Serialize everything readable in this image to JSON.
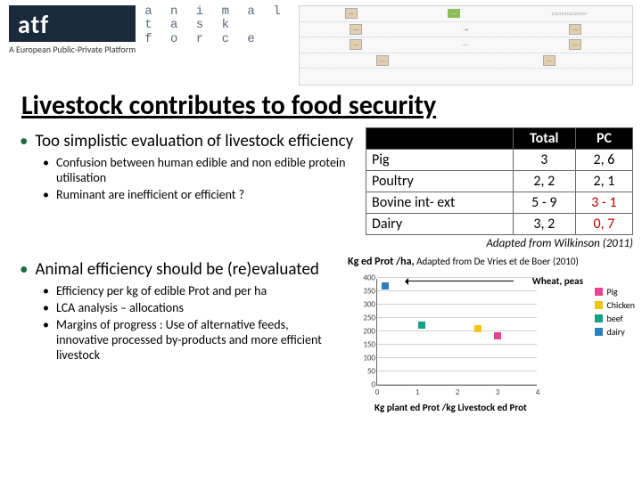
{
  "header": {
    "logo": "atf",
    "logo_sub": "A European Public-Private Platform",
    "taskforce_lines": [
      "a n i m a l",
      "t a s k",
      "f o r c e"
    ]
  },
  "title": "Livestock contributes to food security",
  "bullets": {
    "b1": "Too simplistic evaluation of livestock efficiency",
    "b1_subs": [
      "Confusion between human edible and non edible protein utilisation",
      "Ruminant are inefficient or efficient ?"
    ],
    "b2": "Animal efficiency should be (re)evaluated",
    "b2_subs": [
      "Efficiency per kg of edible Prot  and per ha",
      "LCA analysis – allocations",
      "Margins of progress : Use of alternative feeds, innovative processed by-products and more efficient livestock"
    ]
  },
  "table": {
    "cols": [
      "",
      "Total",
      "PC"
    ],
    "rows": [
      {
        "label": "Pig",
        "total": "3",
        "pc": "2, 6",
        "pc_red": false
      },
      {
        "label": "Poultry",
        "total": "2, 2",
        "pc": "2, 1",
        "pc_red": false
      },
      {
        "label": "Bovine int- ext",
        "total": "5 - 9",
        "pc": "3 - 1",
        "pc_red": true
      },
      {
        "label": "Dairy",
        "total": "3, 2",
        "pc": "0, 7",
        "pc_red": true
      }
    ],
    "caption": "Adapted from Wilkinson  (2011)"
  },
  "chart": {
    "title_main": "Kg ed Prot /ha,",
    "title_note": " Adapted from De Vries et de Boer (2010)",
    "annotation": "Wheat, peas",
    "xlabel": "Kg plant ed Prot /kg Livestock ed Prot",
    "ylim": [
      0,
      400
    ],
    "ytick_step": 50,
    "xlim": [
      0,
      4
    ],
    "xtick_step": 1,
    "grid_color": "#d0d0d0",
    "series": [
      {
        "name": "Pig",
        "color": "#e84393",
        "points": [
          [
            3.0,
            185
          ]
        ]
      },
      {
        "name": "Chicken",
        "color": "#f1c40f",
        "points": [
          [
            2.5,
            210
          ]
        ]
      },
      {
        "name": "beef",
        "color": "#16a085",
        "points": [
          [
            1.1,
            225
          ]
        ]
      },
      {
        "name": "dairy",
        "color": "#2c7fb8",
        "points": [
          [
            0.2,
            370
          ]
        ]
      }
    ]
  }
}
